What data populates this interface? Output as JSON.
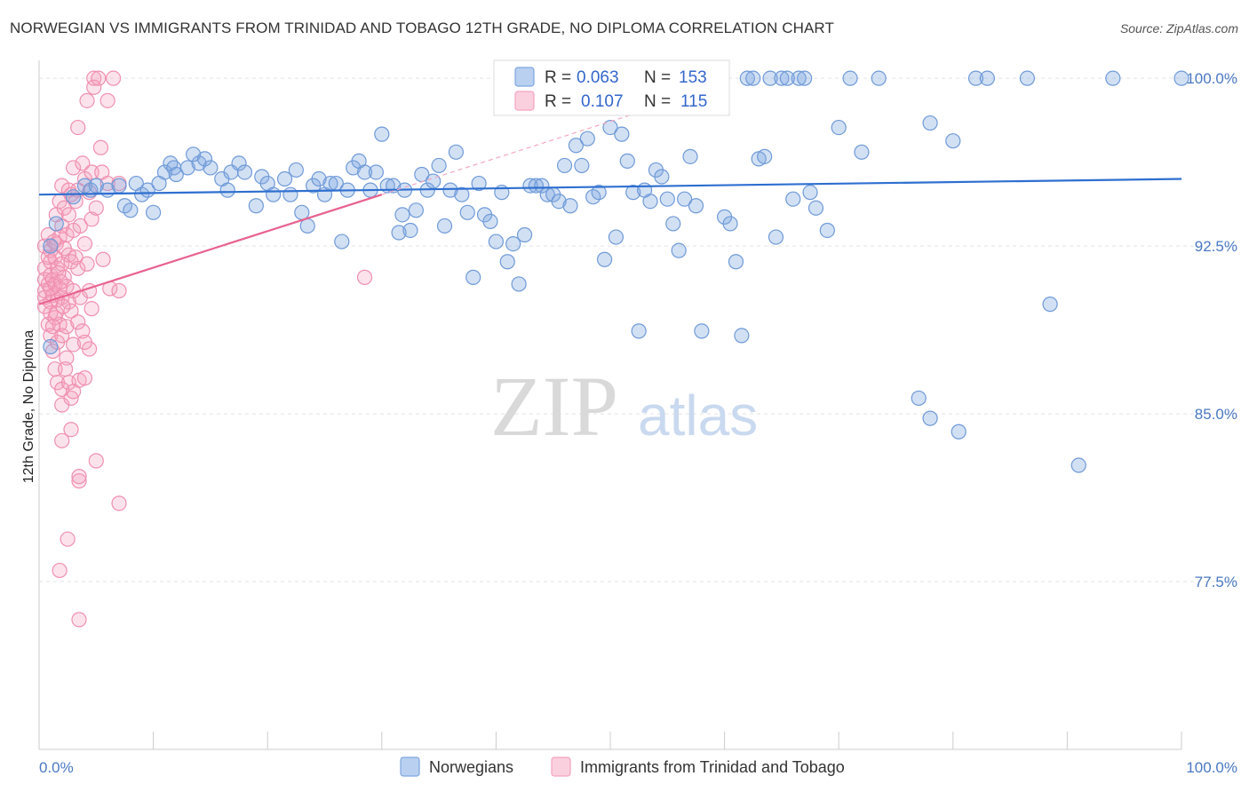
{
  "title": "NORWEGIAN VS IMMIGRANTS FROM TRINIDAD AND TOBAGO 12TH GRADE, NO DIPLOMA CORRELATION CHART",
  "source": "Source: ZipAtlas.com",
  "watermark": {
    "zip": "ZIP",
    "atlas": "atlas"
  },
  "chart_data": {
    "type": "scatter",
    "ylabel": "12th Grade, No Diploma",
    "xlim": [
      0,
      100
    ],
    "ylim": [
      70.0,
      100.8
    ],
    "x_tick_labels": [
      "0.0%",
      "100.0%"
    ],
    "y_ticks": [
      77.5,
      85.0,
      92.5,
      100.0
    ],
    "y_tick_labels": [
      "77.5%",
      "85.0%",
      "92.5%",
      "100.0%"
    ],
    "grid": true,
    "legend_position": "top-center",
    "series": [
      {
        "name": "Norwegians",
        "color": "#7ea6e0",
        "line_color": "#2e6fd0",
        "R": "0.063",
        "N": "153",
        "trend": {
          "x": [
            0,
            100
          ],
          "y": [
            94.8,
            95.5
          ]
        },
        "points": [
          [
            1.0,
            92.5
          ],
          [
            1.0,
            88.0
          ],
          [
            1.5,
            93.5
          ],
          [
            3.0,
            94.7
          ],
          [
            4.0,
            95.2
          ],
          [
            4.5,
            95.0
          ],
          [
            5.0,
            95.2
          ],
          [
            6.0,
            95.0
          ],
          [
            7.0,
            95.2
          ],
          [
            7.5,
            94.3
          ],
          [
            8.5,
            95.3
          ],
          [
            8.0,
            94.1
          ],
          [
            9.0,
            94.8
          ],
          [
            9.5,
            95.0
          ],
          [
            10.0,
            94.0
          ],
          [
            10.5,
            95.3
          ],
          [
            11.0,
            95.8
          ],
          [
            11.5,
            96.2
          ],
          [
            11.8,
            96.0
          ],
          [
            12.0,
            95.7
          ],
          [
            13.0,
            96.0
          ],
          [
            14.0,
            96.2
          ],
          [
            13.5,
            96.6
          ],
          [
            14.5,
            96.4
          ],
          [
            15.0,
            96.0
          ],
          [
            16.0,
            95.5
          ],
          [
            16.5,
            95.0
          ],
          [
            16.8,
            95.8
          ],
          [
            17.5,
            96.2
          ],
          [
            18.0,
            95.8
          ],
          [
            19.0,
            94.3
          ],
          [
            19.5,
            95.6
          ],
          [
            20.0,
            95.3
          ],
          [
            20.5,
            94.8
          ],
          [
            21.5,
            95.5
          ],
          [
            22.0,
            94.8
          ],
          [
            22.5,
            95.9
          ],
          [
            23.0,
            94.0
          ],
          [
            23.5,
            93.4
          ],
          [
            24.0,
            95.2
          ],
          [
            24.5,
            95.5
          ],
          [
            25.0,
            94.8
          ],
          [
            25.5,
            95.3
          ],
          [
            26.0,
            95.3
          ],
          [
            26.5,
            92.7
          ],
          [
            27.0,
            95.0
          ],
          [
            27.5,
            96.0
          ],
          [
            28.0,
            96.3
          ],
          [
            28.5,
            95.8
          ],
          [
            29.0,
            95.0
          ],
          [
            29.5,
            95.8
          ],
          [
            30.0,
            97.5
          ],
          [
            30.5,
            95.2
          ],
          [
            31.0,
            95.2
          ],
          [
            31.5,
            93.1
          ],
          [
            31.8,
            93.9
          ],
          [
            32.0,
            95.0
          ],
          [
            32.5,
            93.2
          ],
          [
            33.0,
            94.1
          ],
          [
            33.5,
            95.7
          ],
          [
            34.0,
            95.0
          ],
          [
            34.5,
            95.4
          ],
          [
            35.0,
            96.1
          ],
          [
            35.5,
            93.4
          ],
          [
            36.0,
            95.0
          ],
          [
            36.5,
            96.7
          ],
          [
            37.0,
            94.8
          ],
          [
            37.5,
            94.0
          ],
          [
            38.0,
            91.1
          ],
          [
            38.5,
            95.3
          ],
          [
            39.0,
            93.9
          ],
          [
            39.5,
            93.6
          ],
          [
            40.0,
            92.7
          ],
          [
            40.5,
            94.9
          ],
          [
            41.0,
            91.8
          ],
          [
            41.5,
            92.6
          ],
          [
            42.0,
            90.8
          ],
          [
            42.5,
            93.0
          ],
          [
            43.0,
            95.2
          ],
          [
            43.5,
            95.2
          ],
          [
            44.0,
            95.2
          ],
          [
            44.5,
            94.8
          ],
          [
            45.0,
            94.8
          ],
          [
            45.5,
            94.5
          ],
          [
            46.0,
            96.1
          ],
          [
            46.5,
            94.3
          ],
          [
            47.0,
            97.0
          ],
          [
            47.5,
            96.1
          ],
          [
            48.0,
            97.3
          ],
          [
            48.5,
            94.7
          ],
          [
            49.0,
            94.9
          ],
          [
            49.5,
            91.9
          ],
          [
            50.0,
            97.8
          ],
          [
            50.5,
            92.9
          ],
          [
            51.0,
            97.5
          ],
          [
            51.5,
            96.3
          ],
          [
            52.0,
            94.9
          ],
          [
            52.5,
            88.7
          ],
          [
            53.0,
            95.0
          ],
          [
            53.5,
            94.5
          ],
          [
            54.0,
            95.9
          ],
          [
            54.5,
            95.6
          ],
          [
            55.0,
            94.6
          ],
          [
            55.5,
            93.5
          ],
          [
            56.0,
            92.3
          ],
          [
            56.5,
            94.6
          ],
          [
            57.0,
            96.5
          ],
          [
            57.5,
            94.3
          ],
          [
            58.0,
            88.7
          ],
          [
            59.0,
            100.0
          ],
          [
            60.0,
            93.8
          ],
          [
            60.5,
            93.5
          ],
          [
            61.0,
            91.8
          ],
          [
            61.5,
            88.5
          ],
          [
            62.0,
            100.0
          ],
          [
            62.5,
            100.0
          ],
          [
            63.0,
            96.4
          ],
          [
            63.5,
            96.5
          ],
          [
            64.0,
            100.0
          ],
          [
            64.5,
            92.9
          ],
          [
            65.0,
            100.0
          ],
          [
            65.5,
            100.0
          ],
          [
            66.0,
            94.6
          ],
          [
            66.5,
            100.0
          ],
          [
            67.0,
            100.0
          ],
          [
            67.5,
            94.9
          ],
          [
            68.0,
            94.2
          ],
          [
            69.0,
            93.2
          ],
          [
            70.0,
            97.8
          ],
          [
            71.0,
            100.0
          ],
          [
            72.0,
            96.7
          ],
          [
            73.5,
            100.0
          ],
          [
            77.0,
            85.7
          ],
          [
            78.0,
            98.0
          ],
          [
            78.0,
            84.8
          ],
          [
            80.0,
            97.2
          ],
          [
            82.0,
            100.0
          ],
          [
            83.0,
            100.0
          ],
          [
            80.5,
            84.2
          ],
          [
            86.5,
            100.0
          ],
          [
            88.5,
            89.9
          ],
          [
            91.0,
            82.7
          ],
          [
            94.0,
            100.0
          ],
          [
            100.0,
            100.0
          ]
        ]
      },
      {
        "name": "Immigrants from Trinidad and Tobago",
        "color": "#f4a3bd",
        "line_color": "#e8628f",
        "R": "0.107",
        "N": "115",
        "trend": {
          "x": [
            0,
            30
          ],
          "y": [
            89.9,
            94.8
          ]
        },
        "points": [
          [
            0.5,
            92.5
          ],
          [
            0.5,
            91.5
          ],
          [
            0.5,
            91.0
          ],
          [
            0.5,
            90.5
          ],
          [
            0.5,
            90.2
          ],
          [
            0.5,
            89.8
          ],
          [
            0.8,
            93.0
          ],
          [
            0.8,
            92.0
          ],
          [
            0.8,
            90.8
          ],
          [
            0.8,
            89.0
          ],
          [
            1.0,
            92.3
          ],
          [
            1.0,
            91.8
          ],
          [
            1.0,
            91.2
          ],
          [
            1.0,
            90.6
          ],
          [
            1.0,
            90.0
          ],
          [
            1.0,
            89.5
          ],
          [
            1.0,
            88.5
          ],
          [
            1.2,
            91.0
          ],
          [
            1.2,
            90.3
          ],
          [
            1.2,
            87.8
          ],
          [
            1.4,
            92.0
          ],
          [
            1.4,
            90.8
          ],
          [
            1.4,
            89.3
          ],
          [
            1.4,
            87.0
          ],
          [
            1.5,
            93.9
          ],
          [
            1.5,
            92.6
          ],
          [
            1.6,
            91.5
          ],
          [
            1.6,
            90.1
          ],
          [
            1.6,
            88.2
          ],
          [
            1.6,
            86.4
          ],
          [
            1.8,
            94.5
          ],
          [
            1.8,
            92.9
          ],
          [
            1.8,
            90.6
          ],
          [
            1.8,
            89.0
          ],
          [
            2.0,
            95.2
          ],
          [
            2.0,
            93.4
          ],
          [
            2.0,
            91.7
          ],
          [
            2.0,
            90.2
          ],
          [
            2.0,
            88.5
          ],
          [
            2.0,
            86.1
          ],
          [
            2.0,
            85.4
          ],
          [
            2.0,
            83.8
          ],
          [
            2.2,
            94.2
          ],
          [
            2.2,
            92.4
          ],
          [
            2.2,
            91.1
          ],
          [
            2.4,
            93.0
          ],
          [
            2.4,
            90.7
          ],
          [
            2.4,
            88.9
          ],
          [
            2.4,
            87.5
          ],
          [
            2.6,
            95.0
          ],
          [
            2.6,
            93.9
          ],
          [
            2.6,
            92.1
          ],
          [
            2.6,
            90.0
          ],
          [
            2.6,
            86.4
          ],
          [
            2.8,
            94.8
          ],
          [
            2.8,
            91.8
          ],
          [
            2.8,
            89.6
          ],
          [
            2.8,
            85.7
          ],
          [
            2.8,
            84.3
          ],
          [
            3.0,
            96.0
          ],
          [
            3.0,
            93.2
          ],
          [
            3.0,
            90.5
          ],
          [
            3.0,
            88.1
          ],
          [
            3.2,
            94.5
          ],
          [
            3.2,
            92.0
          ],
          [
            3.4,
            97.8
          ],
          [
            3.4,
            95.0
          ],
          [
            3.4,
            91.5
          ],
          [
            3.4,
            89.1
          ],
          [
            3.5,
            86.5
          ],
          [
            3.5,
            82.0
          ],
          [
            3.6,
            93.4
          ],
          [
            3.6,
            90.2
          ],
          [
            3.8,
            96.2
          ],
          [
            3.8,
            88.7
          ],
          [
            4.0,
            95.5
          ],
          [
            4.0,
            92.6
          ],
          [
            4.0,
            86.6
          ],
          [
            4.2,
            99.0
          ],
          [
            4.2,
            91.7
          ],
          [
            4.4,
            94.9
          ],
          [
            4.4,
            90.5
          ],
          [
            4.4,
            87.9
          ],
          [
            4.6,
            95.8
          ],
          [
            4.6,
            93.7
          ],
          [
            4.6,
            89.7
          ],
          [
            4.8,
            100.0
          ],
          [
            4.8,
            99.6
          ],
          [
            5.0,
            82.9
          ],
          [
            5.0,
            94.2
          ],
          [
            5.2,
            100.0
          ],
          [
            5.4,
            96.9
          ],
          [
            5.5,
            95.8
          ],
          [
            5.6,
            91.9
          ],
          [
            6.0,
            99.0
          ],
          [
            6.0,
            95.3
          ],
          [
            6.2,
            90.6
          ],
          [
            6.5,
            100.0
          ],
          [
            7.0,
            95.3
          ],
          [
            7.0,
            81.0
          ],
          [
            7.0,
            90.5
          ],
          [
            1.8,
            78.0
          ],
          [
            2.5,
            79.4
          ],
          [
            3.5,
            75.8
          ],
          [
            3.5,
            82.2
          ],
          [
            4.0,
            88.2
          ],
          [
            28.5,
            91.1
          ],
          [
            1.5,
            89.5
          ],
          [
            2.3,
            87.0
          ],
          [
            3.0,
            86.0
          ],
          [
            1.2,
            88.9
          ],
          [
            1.3,
            92.7
          ],
          [
            1.7,
            91.3
          ],
          [
            1.9,
            90.9
          ],
          [
            2.1,
            89.8
          ]
        ]
      }
    ]
  }
}
